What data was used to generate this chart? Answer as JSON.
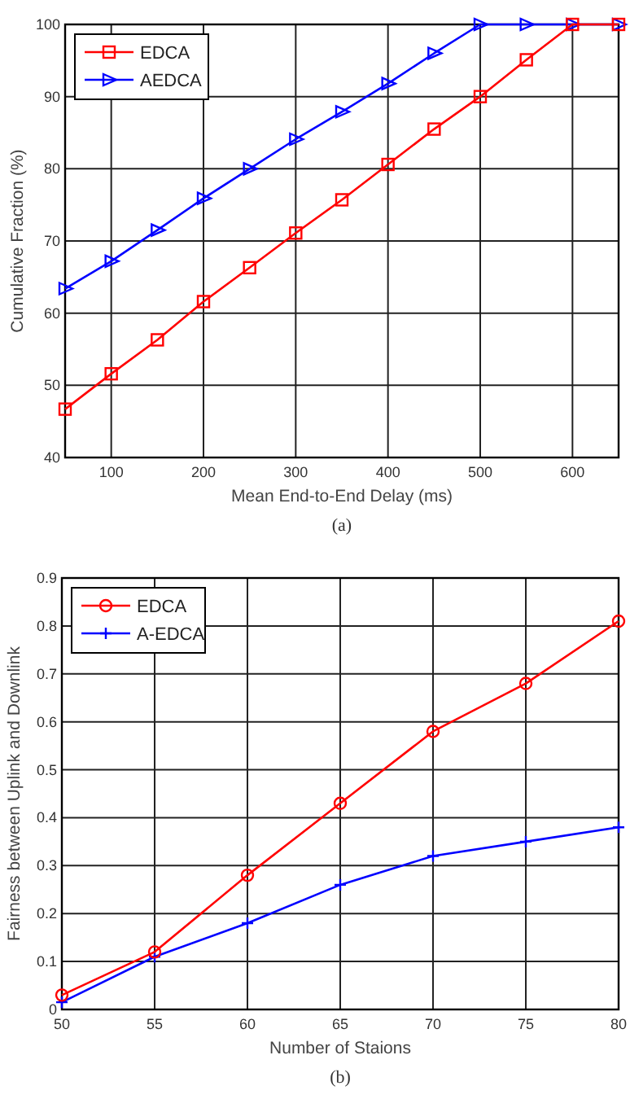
{
  "chart_data": [
    {
      "type": "line",
      "xlabel": "Mean End-to-End Delay (ms)",
      "ylabel": "Cumulative Fraction (%)",
      "x": [
        50,
        100,
        150,
        200,
        250,
        300,
        350,
        400,
        450,
        500,
        550,
        600,
        650
      ],
      "series": [
        {
          "name": "EDCA",
          "color": "#ff0000",
          "marker": "square",
          "values": [
            46.7,
            51.6,
            56.3,
            61.6,
            66.3,
            71.1,
            75.7,
            80.6,
            85.5,
            90,
            95.1,
            100,
            100
          ]
        },
        {
          "name": "AEDCA",
          "color": "#0000ff",
          "marker": "triangle",
          "values": [
            63.4,
            67.2,
            71.5,
            75.9,
            80,
            84.1,
            87.9,
            91.8,
            96,
            100,
            100,
            100,
            100
          ]
        }
      ],
      "xlim": [
        50,
        650
      ],
      "xticks": [
        100,
        200,
        300,
        400,
        500,
        600
      ],
      "ylim": [
        40,
        100
      ],
      "yticks": [
        40,
        50,
        60,
        70,
        80,
        90,
        100
      ],
      "grid": true,
      "legend": "top left",
      "annotations": [
        "(a)"
      ]
    },
    {
      "type": "line",
      "xlabel": "Number of Staions",
      "ylabel": "Fairness between Uplink and Downlink",
      "x": [
        50,
        55,
        60,
        65,
        70,
        75,
        80
      ],
      "series": [
        {
          "name": "EDCA",
          "color": "#ff0000",
          "marker": "circle",
          "values": [
            0.03,
            0.12,
            0.28,
            0.43,
            0.58,
            0.68,
            0.81
          ]
        },
        {
          "name": "A-EDCA",
          "color": "#0000ff",
          "marker": "cross",
          "values": [
            0.015,
            0.11,
            0.18,
            0.26,
            0.32,
            0.35,
            0.38
          ]
        }
      ],
      "xlim": [
        50,
        80
      ],
      "xticks": [
        50,
        55,
        60,
        65,
        70,
        75,
        80
      ],
      "ylim": [
        0,
        0.9
      ],
      "yticks": [
        0,
        0.1,
        0.2,
        0.3,
        0.4,
        0.5,
        0.6,
        0.7,
        0.8,
        0.9
      ],
      "grid": true,
      "legend": "top left",
      "annotations": [
        "(b)"
      ]
    }
  ]
}
